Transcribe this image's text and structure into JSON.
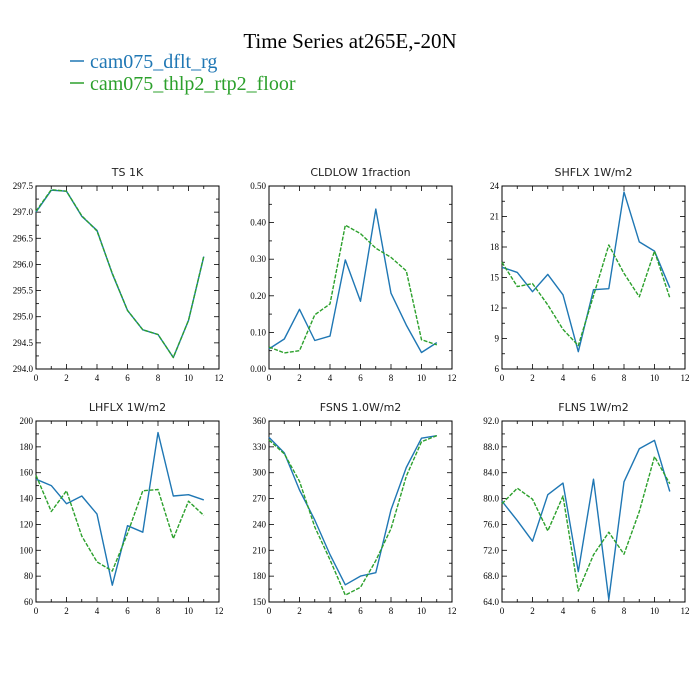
{
  "title": "Time Series at265E,-20N",
  "legend": [
    {
      "name": "cam075_dflt_rg",
      "color": "#1f77b4",
      "dash": "solid"
    },
    {
      "name": "cam075_thlp2_rtp2_floor",
      "color": "#2ca02c",
      "dash": "dashed"
    }
  ],
  "chart_data": [
    {
      "type": "line",
      "title": "TS   1K",
      "x": [
        0,
        1,
        2,
        3,
        4,
        5,
        6,
        7,
        8,
        9,
        10,
        11
      ],
      "xlim": [
        0,
        12
      ],
      "xticks": [
        0,
        2,
        4,
        6,
        8,
        10,
        12
      ],
      "ylim": [
        294.0,
        297.5
      ],
      "yticks": [
        "294.0",
        "294.5",
        "295.0",
        "295.5",
        "296.0",
        "296.5",
        "297.0",
        "297.5"
      ],
      "series": [
        {
          "name": "cam075_dflt_rg",
          "values": [
            297.0,
            297.42,
            297.4,
            296.92,
            296.65,
            295.82,
            295.12,
            294.75,
            294.66,
            294.22,
            294.93,
            296.15
          ]
        },
        {
          "name": "cam075_thlp2_rtp2_floor",
          "values": [
            297.02,
            297.43,
            297.4,
            296.93,
            296.64,
            295.83,
            295.12,
            294.75,
            294.66,
            294.22,
            294.93,
            296.16
          ]
        }
      ]
    },
    {
      "type": "line",
      "title": "CLDLOW   1fraction",
      "x": [
        0,
        1,
        2,
        3,
        4,
        5,
        6,
        7,
        8,
        9,
        10,
        11
      ],
      "xlim": [
        0,
        12
      ],
      "xticks": [
        0,
        2,
        4,
        6,
        8,
        10,
        12
      ],
      "ylim": [
        0.0,
        0.5
      ],
      "yticks": [
        "0.00",
        "0.10",
        "0.20",
        "0.30",
        "0.40",
        "0.50"
      ],
      "series": [
        {
          "name": "cam075_dflt_rg",
          "values": [
            0.055,
            0.082,
            0.163,
            0.078,
            0.09,
            0.298,
            0.185,
            0.437,
            0.207,
            0.12,
            0.045,
            0.072
          ]
        },
        {
          "name": "cam075_thlp2_rtp2_floor",
          "values": [
            0.06,
            0.044,
            0.05,
            0.148,
            0.178,
            0.393,
            0.37,
            0.33,
            0.305,
            0.268,
            0.08,
            0.066
          ]
        }
      ]
    },
    {
      "type": "line",
      "title": "SHFLX   1W/m2",
      "x": [
        0,
        1,
        2,
        3,
        4,
        5,
        6,
        7,
        8,
        9,
        10,
        11
      ],
      "xlim": [
        0,
        12
      ],
      "xticks": [
        0,
        2,
        4,
        6,
        8,
        10,
        12
      ],
      "ylim": [
        6,
        24
      ],
      "yticks": [
        "6",
        "9",
        "12",
        "15",
        "18",
        "21",
        "24"
      ],
      "series": [
        {
          "name": "cam075_dflt_rg",
          "values": [
            16.0,
            15.5,
            13.6,
            15.3,
            13.3,
            7.7,
            13.8,
            13.9,
            23.4,
            18.5,
            17.6,
            14.0
          ]
        },
        {
          "name": "cam075_thlp2_rtp2_floor",
          "values": [
            16.5,
            14.1,
            14.4,
            12.3,
            9.9,
            8.3,
            13.2,
            18.2,
            15.4,
            13.1,
            17.6,
            13.0
          ]
        }
      ]
    },
    {
      "type": "line",
      "title": "LHFLX   1W/m2",
      "x": [
        0,
        1,
        2,
        3,
        4,
        5,
        6,
        7,
        8,
        9,
        10,
        11
      ],
      "xlim": [
        0,
        12
      ],
      "xticks": [
        0,
        2,
        4,
        6,
        8,
        10,
        12
      ],
      "ylim": [
        60,
        200
      ],
      "yticks": [
        "60",
        "80",
        "100",
        "120",
        "140",
        "160",
        "180",
        "200"
      ],
      "series": [
        {
          "name": "cam075_dflt_rg",
          "values": [
            155,
            150,
            136,
            142,
            128,
            73,
            119,
            114,
            191,
            142,
            143,
            139
          ]
        },
        {
          "name": "cam075_thlp2_rtp2_floor",
          "values": [
            158,
            130,
            146,
            111,
            91,
            84,
            113,
            146,
            147,
            109,
            138,
            127
          ]
        }
      ]
    },
    {
      "type": "line",
      "title": "FSNS   1.0W/m2",
      "x": [
        0,
        1,
        2,
        3,
        4,
        5,
        6,
        7,
        8,
        9,
        10,
        11
      ],
      "xlim": [
        0,
        12
      ],
      "xticks": [
        0,
        2,
        4,
        6,
        8,
        10,
        12
      ],
      "ylim": [
        150,
        360
      ],
      "yticks": [
        "150",
        "180",
        "210",
        "240",
        "270",
        "300",
        "330",
        "360"
      ],
      "series": [
        {
          "name": "cam075_dflt_rg",
          "values": [
            341,
            323,
            280,
            245,
            205,
            170,
            180,
            184,
            257,
            306,
            340,
            343
          ]
        },
        {
          "name": "cam075_thlp2_rtp2_floor",
          "values": [
            338,
            322,
            290,
            237,
            199,
            158,
            167,
            198,
            235,
            296,
            336,
            343
          ]
        }
      ]
    },
    {
      "type": "line",
      "title": "FLNS   1W/m2",
      "x": [
        0,
        1,
        2,
        3,
        4,
        5,
        6,
        7,
        8,
        9,
        10,
        11
      ],
      "xlim": [
        0,
        12
      ],
      "xticks": [
        0,
        2,
        4,
        6,
        8,
        10,
        12
      ],
      "ylim": [
        64,
        92
      ],
      "yticks": [
        "64.0",
        "68.0",
        "72.0",
        "76.0",
        "80.0",
        "84.0",
        "88.0",
        "92.0"
      ],
      "series": [
        {
          "name": "cam075_dflt_rg",
          "values": [
            79.6,
            76.6,
            73.4,
            80.6,
            82.4,
            68.7,
            83.0,
            64.4,
            82.6,
            87.7,
            89.0,
            81.1
          ]
        },
        {
          "name": "cam075_thlp2_rtp2_floor",
          "values": [
            79.2,
            81.6,
            79.9,
            75.0,
            80.4,
            65.7,
            71.3,
            74.8,
            71.4,
            78.0,
            86.5,
            82.3
          ]
        }
      ]
    }
  ]
}
